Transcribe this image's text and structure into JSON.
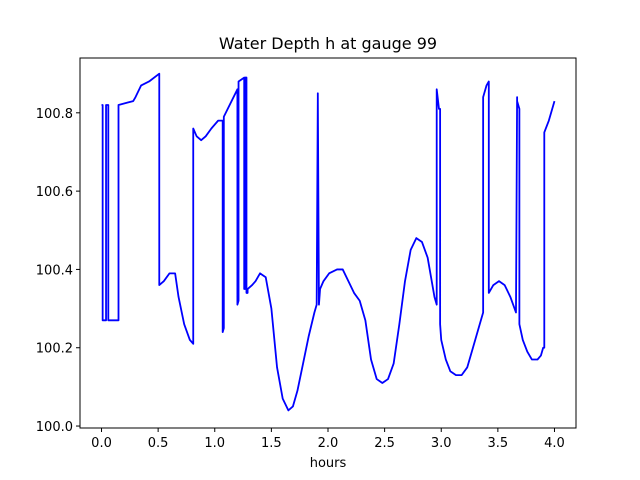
{
  "chart_data": {
    "type": "line",
    "title": "Water Depth h at gauge 99",
    "xlabel": "hours",
    "ylabel": "",
    "xlim": [
      -0.19,
      4.19
    ],
    "ylim": [
      99.995,
      100.94
    ],
    "xticks": [
      0.0,
      0.5,
      1.0,
      1.5,
      2.0,
      2.5,
      3.0,
      3.5,
      4.0
    ],
    "xtick_labels": [
      "0.0",
      "0.5",
      "1.0",
      "1.5",
      "2.0",
      "2.5",
      "3.0",
      "3.5",
      "4.0"
    ],
    "yticks": [
      100.0,
      100.2,
      100.4,
      100.6,
      100.8
    ],
    "ytick_labels": [
      "100.0",
      "100.2",
      "100.4",
      "100.6",
      "100.8"
    ],
    "grid": false,
    "series": [
      {
        "color": "#0000ff",
        "x": [
          0.0,
          0.01,
          0.01,
          0.04,
          0.04,
          0.06,
          0.06,
          0.15,
          0.15,
          0.28,
          0.3,
          0.35,
          0.42,
          0.51,
          0.51,
          0.55,
          0.6,
          0.65,
          0.68,
          0.73,
          0.78,
          0.81,
          0.81,
          0.84,
          0.88,
          0.92,
          0.97,
          1.03,
          1.07,
          1.07,
          1.08,
          1.08,
          1.2,
          1.2,
          1.21,
          1.21,
          1.26,
          1.26,
          1.27,
          1.27,
          1.28,
          1.28,
          1.29,
          1.29,
          1.33,
          1.36,
          1.4,
          1.45,
          1.5,
          1.55,
          1.6,
          1.65,
          1.69,
          1.73,
          1.78,
          1.83,
          1.88,
          1.9,
          1.91,
          1.91,
          1.92,
          1.92,
          1.93,
          1.96,
          2.01,
          2.08,
          2.13,
          2.18,
          2.23,
          2.28,
          2.33,
          2.38,
          2.43,
          2.48,
          2.53,
          2.58,
          2.63,
          2.68,
          2.73,
          2.78,
          2.83,
          2.88,
          2.91,
          2.94,
          2.96,
          2.96,
          2.98,
          2.99,
          2.99,
          3.0,
          3.04,
          3.08,
          3.13,
          3.18,
          3.23,
          3.28,
          3.33,
          3.37,
          3.37,
          3.4,
          3.42,
          3.42,
          3.46,
          3.51,
          3.56,
          3.61,
          3.66,
          3.67,
          3.67,
          3.69,
          3.69,
          3.72,
          3.76,
          3.8,
          3.85,
          3.88,
          3.9,
          3.91,
          3.91,
          3.95,
          4.0
        ],
        "y": [
          100.82,
          100.82,
          100.27,
          100.27,
          100.82,
          100.82,
          100.27,
          100.27,
          100.82,
          100.83,
          100.84,
          100.87,
          100.88,
          100.9,
          100.36,
          100.37,
          100.39,
          100.39,
          100.33,
          100.26,
          100.22,
          100.21,
          100.76,
          100.74,
          100.73,
          100.74,
          100.76,
          100.78,
          100.78,
          100.24,
          100.25,
          100.79,
          100.86,
          100.31,
          100.32,
          100.88,
          100.89,
          100.35,
          100.35,
          100.89,
          100.89,
          100.34,
          100.34,
          100.35,
          100.36,
          100.37,
          100.39,
          100.38,
          100.3,
          100.15,
          100.07,
          100.04,
          100.05,
          100.09,
          100.16,
          100.23,
          100.29,
          100.31,
          100.84,
          100.85,
          100.31,
          100.31,
          100.35,
          100.37,
          100.39,
          100.4,
          100.4,
          100.37,
          100.34,
          100.32,
          100.27,
          100.17,
          100.12,
          100.11,
          100.12,
          100.16,
          100.26,
          100.37,
          100.45,
          100.48,
          100.47,
          100.43,
          100.38,
          100.33,
          100.31,
          100.86,
          100.81,
          100.81,
          100.26,
          100.22,
          100.17,
          100.14,
          100.13,
          100.13,
          100.15,
          100.2,
          100.25,
          100.29,
          100.84,
          100.87,
          100.88,
          100.34,
          100.36,
          100.37,
          100.36,
          100.33,
          100.29,
          100.84,
          100.83,
          100.81,
          100.26,
          100.22,
          100.19,
          100.17,
          100.17,
          100.18,
          100.2,
          100.2,
          100.75,
          100.78,
          100.83
        ]
      }
    ]
  }
}
